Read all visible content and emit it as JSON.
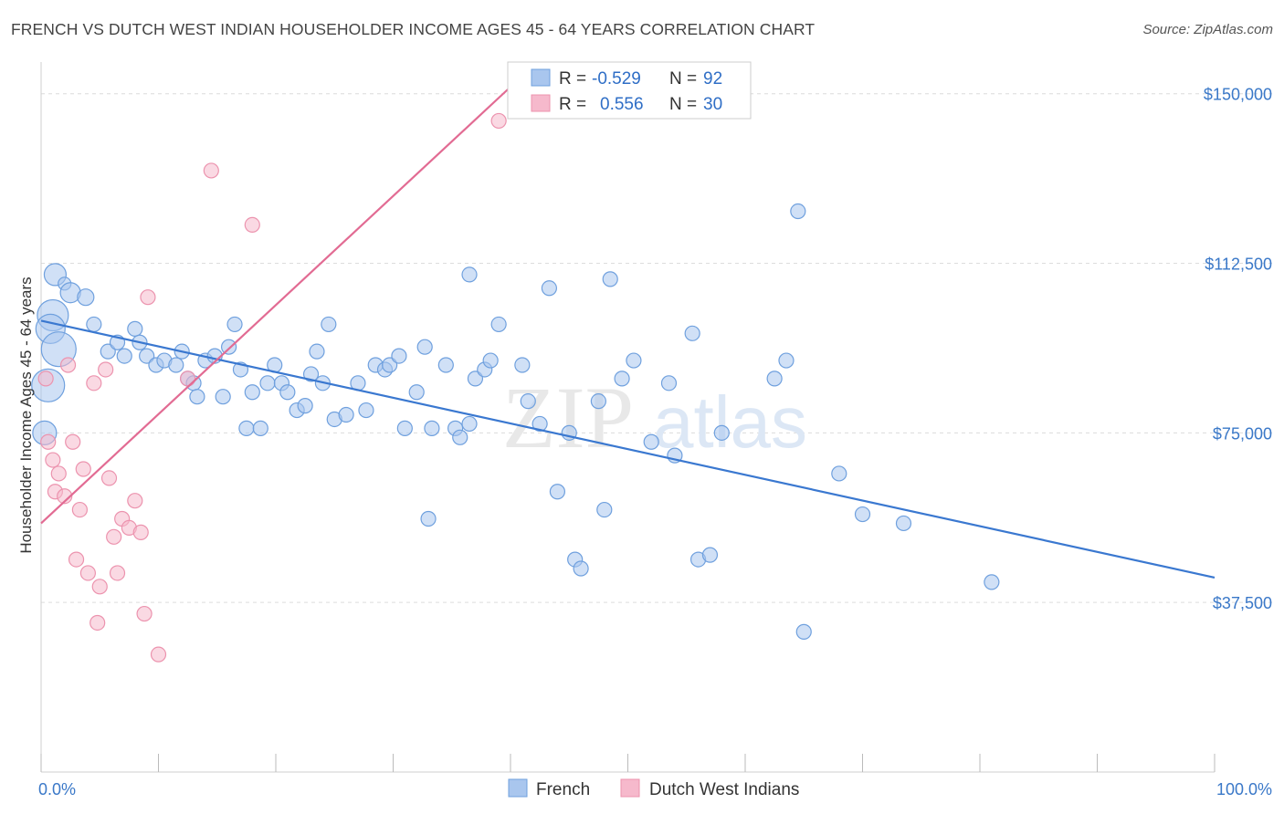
{
  "title": "FRENCH VS DUTCH WEST INDIAN HOUSEHOLDER INCOME AGES 45 - 64 YEARS CORRELATION CHART",
  "source": "Source: ZipAtlas.com",
  "colors": {
    "french_fill": "#a9c6ee",
    "french_stroke": "#6fa0de",
    "french_line": "#3a78d0",
    "dutch_fill": "#f6b9cc",
    "dutch_stroke": "#ec93ae",
    "dutch_line": "#e26b93",
    "tick_text": "#3a78c8",
    "grid": "#dcdcdc"
  },
  "legend": {
    "rows": [
      {
        "r_label": "R =",
        "r_value": "-0.529",
        "n_label": "N =",
        "n_value": "92"
      },
      {
        "r_label": "R =",
        "r_value": "0.556",
        "n_label": "N =",
        "n_value": "30"
      }
    ]
  },
  "watermark": {
    "zip": "ZIP",
    "atlas": "atlas"
  },
  "chart_data": {
    "type": "scatter",
    "title": "FRENCH VS DUTCH WEST INDIAN HOUSEHOLDER INCOME AGES 45 - 64 YEARS CORRELATION CHART",
    "ylabel": "Householder Income Ages 45 - 64 years",
    "xlabel": "",
    "xlim": [
      0,
      100
    ],
    "ylim": [
      0,
      157000
    ],
    "x_tick_labels": [
      "0.0%",
      "100.0%"
    ],
    "y_ticks": [
      37500,
      75000,
      112500,
      150000
    ],
    "y_tick_labels": [
      "$37,500",
      "$75,000",
      "$112,500",
      "$150,000"
    ],
    "grid": true,
    "legend_position": "top-center",
    "series": [
      {
        "name": "French",
        "R": -0.529,
        "N": 92,
        "trend": {
          "x": [
            0,
            100
          ],
          "y": [
            99800,
            43000
          ]
        },
        "points": [
          [
            1.2,
            110,
            11
          ],
          [
            2.0,
            108,
            6
          ],
          [
            2.5,
            106,
            10
          ],
          [
            1.0,
            101,
            16
          ],
          [
            0.8,
            98,
            15
          ],
          [
            1.5,
            93.5,
            18
          ],
          [
            0.6,
            85.5,
            17
          ],
          [
            0.3,
            75,
            12
          ],
          [
            3.8,
            105,
            8
          ],
          [
            4.5,
            99,
            7
          ],
          [
            5.7,
            93,
            7
          ],
          [
            6.5,
            95,
            7
          ],
          [
            7.1,
            92,
            7
          ],
          [
            8.0,
            98,
            7
          ],
          [
            8.4,
            95,
            7
          ],
          [
            9.0,
            92,
            7
          ],
          [
            9.8,
            90,
            7
          ],
          [
            10.5,
            91,
            7
          ],
          [
            11.5,
            90,
            7
          ],
          [
            12.0,
            93,
            7
          ],
          [
            12.5,
            87,
            7
          ],
          [
            13.0,
            86,
            7
          ],
          [
            13.3,
            83,
            7
          ],
          [
            14.0,
            91,
            7
          ],
          [
            14.8,
            92,
            7
          ],
          [
            15.5,
            83,
            7
          ],
          [
            16.0,
            94,
            7
          ],
          [
            16.5,
            99,
            7
          ],
          [
            17.0,
            89,
            7
          ],
          [
            17.5,
            76,
            7
          ],
          [
            18.0,
            84,
            7
          ],
          [
            18.7,
            76,
            7
          ],
          [
            19.3,
            86,
            7
          ],
          [
            19.9,
            90,
            7
          ],
          [
            20.5,
            86,
            7
          ],
          [
            21.0,
            84,
            7
          ],
          [
            21.8,
            80,
            7
          ],
          [
            22.5,
            81,
            7
          ],
          [
            23.0,
            88,
            7
          ],
          [
            23.5,
            93,
            7
          ],
          [
            24.0,
            86,
            7
          ],
          [
            24.5,
            99,
            7
          ],
          [
            25.0,
            78,
            7
          ],
          [
            26.0,
            79,
            7
          ],
          [
            27.0,
            86,
            7
          ],
          [
            27.7,
            80,
            7
          ],
          [
            28.5,
            90,
            7
          ],
          [
            29.3,
            89,
            7
          ],
          [
            29.7,
            90,
            7
          ],
          [
            30.5,
            92,
            7
          ],
          [
            31.0,
            76,
            7
          ],
          [
            32.0,
            84,
            7
          ],
          [
            32.7,
            94,
            7
          ],
          [
            33.3,
            76,
            7
          ],
          [
            34.5,
            90,
            7
          ],
          [
            35.3,
            76,
            7
          ],
          [
            35.7,
            74,
            7
          ],
          [
            36.5,
            77,
            7
          ],
          [
            37.0,
            87,
            7
          ],
          [
            37.8,
            89,
            7
          ],
          [
            38.3,
            91,
            7
          ],
          [
            39.0,
            99,
            7
          ],
          [
            41.0,
            90,
            7
          ],
          [
            41.5,
            82,
            7
          ],
          [
            42.5,
            77,
            7
          ],
          [
            43.3,
            107,
            7
          ],
          [
            44.0,
            62,
            7
          ],
          [
            45.0,
            75,
            7
          ],
          [
            45.5,
            47,
            7
          ],
          [
            46.0,
            45,
            7
          ],
          [
            47.5,
            82,
            7
          ],
          [
            48.0,
            58,
            7
          ],
          [
            48.5,
            109,
            7
          ],
          [
            49.5,
            87,
            7
          ],
          [
            50.5,
            91,
            7
          ],
          [
            52.0,
            73,
            7
          ],
          [
            53.5,
            86,
            7
          ],
          [
            54.0,
            70,
            7
          ],
          [
            55.5,
            97,
            7
          ],
          [
            56.0,
            47,
            7
          ],
          [
            57.0,
            48,
            7
          ],
          [
            58.0,
            75,
            7
          ],
          [
            62.5,
            87,
            7
          ],
          [
            63.5,
            91,
            7
          ],
          [
            64.5,
            124,
            7
          ],
          [
            65.0,
            31,
            7
          ],
          [
            68.0,
            66,
            7
          ],
          [
            70.0,
            57,
            7
          ],
          [
            73.5,
            55,
            7
          ],
          [
            81.0,
            42,
            7
          ],
          [
            33.0,
            56,
            7
          ],
          [
            36.5,
            110,
            7
          ]
        ]
      },
      {
        "name": "Dutch West Indians",
        "R": 0.556,
        "N": 30,
        "trend": {
          "x": [
            0,
            40
          ],
          "y": [
            55000,
            151500
          ]
        },
        "points": [
          [
            0.4,
            87,
            7
          ],
          [
            0.6,
            73,
            7
          ],
          [
            1.0,
            69,
            7
          ],
          [
            1.2,
            62,
            7
          ],
          [
            1.5,
            66,
            7
          ],
          [
            2.0,
            61,
            7
          ],
          [
            2.3,
            90,
            7
          ],
          [
            2.7,
            73,
            7
          ],
          [
            3.0,
            47,
            7
          ],
          [
            3.3,
            58,
            7
          ],
          [
            3.6,
            67,
            7
          ],
          [
            4.0,
            44,
            7
          ],
          [
            4.5,
            86,
            7
          ],
          [
            4.8,
            33,
            7
          ],
          [
            5.0,
            41,
            7
          ],
          [
            5.5,
            89,
            7
          ],
          [
            5.8,
            65,
            7
          ],
          [
            6.2,
            52,
            7
          ],
          [
            6.5,
            44,
            7
          ],
          [
            6.9,
            56,
            7
          ],
          [
            7.5,
            54,
            7
          ],
          [
            8.0,
            60,
            7
          ],
          [
            8.5,
            53,
            7
          ],
          [
            8.8,
            35,
            7
          ],
          [
            9.1,
            105,
            7
          ],
          [
            10.0,
            26,
            7
          ],
          [
            12.5,
            87,
            7
          ],
          [
            14.5,
            133,
            7
          ],
          [
            18.0,
            121,
            7
          ],
          [
            39.0,
            144,
            7
          ]
        ]
      }
    ]
  }
}
